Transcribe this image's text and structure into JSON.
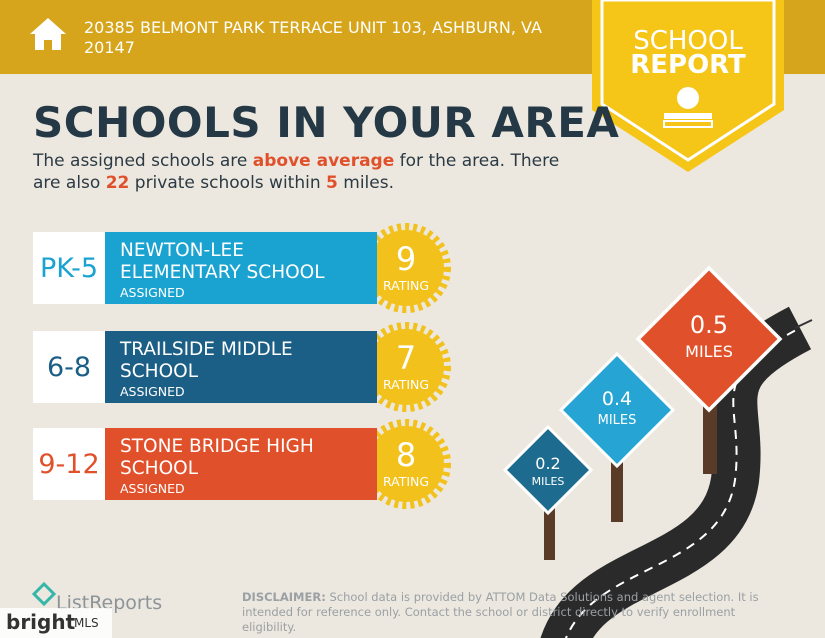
{
  "header": {
    "address": "20385 BELMONT PARK TERRACE UNIT 103, ASHBURN, VA 20147"
  },
  "badge": {
    "line1": "SCHOOL",
    "line2": "REPORT"
  },
  "title": "SCHOOLS IN YOUR AREA",
  "summary": {
    "parts": [
      "The assigned schools are ",
      "above average",
      " for the area. There are also ",
      "22",
      " private schools within ",
      "5",
      " miles."
    ]
  },
  "schools": [
    {
      "grades": "PK-5",
      "name": "NEWTON-LEE ELEMENTARY SCHOOL",
      "status": "ASSIGNED",
      "rating": 9,
      "rating_label": "RATING"
    },
    {
      "grades": "6-8",
      "name": "TRAILSIDE MIDDLE SCHOOL",
      "status": "ASSIGNED",
      "rating": 7,
      "rating_label": "RATING"
    },
    {
      "grades": "9-12",
      "name": "STONE BRIDGE HIGH SCHOOL",
      "status": "ASSIGNED",
      "rating": 8,
      "rating_label": "RATING"
    }
  ],
  "signs": [
    {
      "distance": 0.2,
      "unit": "MILES"
    },
    {
      "distance": 0.4,
      "unit": "MILES"
    },
    {
      "distance": 0.5,
      "unit": "MILES"
    }
  ],
  "footer": {
    "logo": "ListReports",
    "disclaimer_label": "DISCLAIMER:",
    "disclaimer": "School data is provided by ATTOM Data Solutions and agent selection. It is intended for reference only. Contact the school or district directly to verify enrollment eligibility.",
    "watermark": "bright",
    "watermark_mls": "MLS"
  }
}
